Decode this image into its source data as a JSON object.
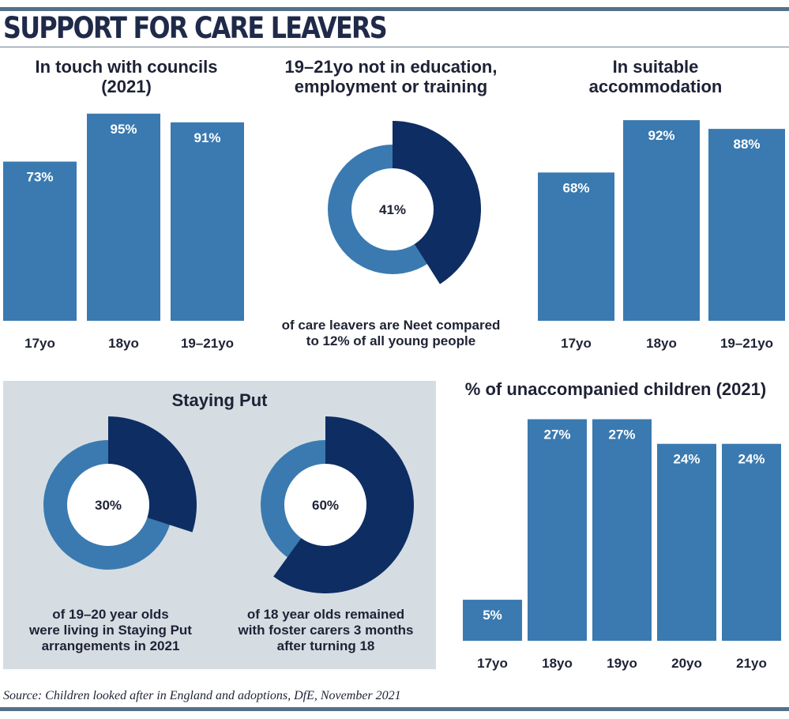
{
  "title": "SUPPORT FOR CARE LEAVERS",
  "source": "Source: Children looked after in England and adoptions, DfE, November 2021",
  "colors": {
    "bar": "#3a7ab0",
    "dark": "#0e2d63",
    "panel": "#d5dde3",
    "rule": "#55708a"
  },
  "chart_data": [
    {
      "type": "bar",
      "title_lines": [
        "In touch with councils",
        "(2021)"
      ],
      "categories": [
        "17yo",
        "18yo",
        "19–21yo"
      ],
      "values": [
        73,
        95,
        91
      ],
      "value_labels": [
        "73%",
        "95%",
        "91%"
      ],
      "ylim": [
        0,
        100
      ]
    },
    {
      "type": "pie",
      "title_lines": [
        "19–21yo not in education,",
        "employment or training"
      ],
      "value": 41,
      "center_label": "41%",
      "caption_lines": [
        "of care leavers are Neet compared",
        "to 12% of all young people"
      ]
    },
    {
      "type": "bar",
      "title_lines": [
        "In suitable",
        "accommodation"
      ],
      "categories": [
        "17yo",
        "18yo",
        "19–21yo"
      ],
      "values": [
        68,
        92,
        88
      ],
      "value_labels": [
        "68%",
        "92%",
        "88%"
      ],
      "ylim": [
        0,
        100
      ]
    },
    {
      "type": "pie",
      "title_lines": [
        "Staying Put"
      ],
      "value": 30,
      "center_label": "30%",
      "caption_lines": [
        "of 19–20 year olds",
        "were living in Staying Put",
        "arrangements in 2021"
      ]
    },
    {
      "type": "pie",
      "value": 60,
      "center_label": "60%",
      "caption_lines": [
        "of 18 year olds remained",
        "with foster carers 3 months",
        "after turning 18"
      ]
    },
    {
      "type": "bar",
      "title_lines": [
        "% of unaccompanied children (2021)"
      ],
      "categories": [
        "17yo",
        "18yo",
        "19yo",
        "20yo",
        "21yo"
      ],
      "values": [
        5,
        27,
        27,
        24,
        24
      ],
      "value_labels": [
        "5%",
        "27%",
        "27%",
        "24%",
        "24%"
      ],
      "ylim": [
        0,
        28.5
      ]
    }
  ]
}
